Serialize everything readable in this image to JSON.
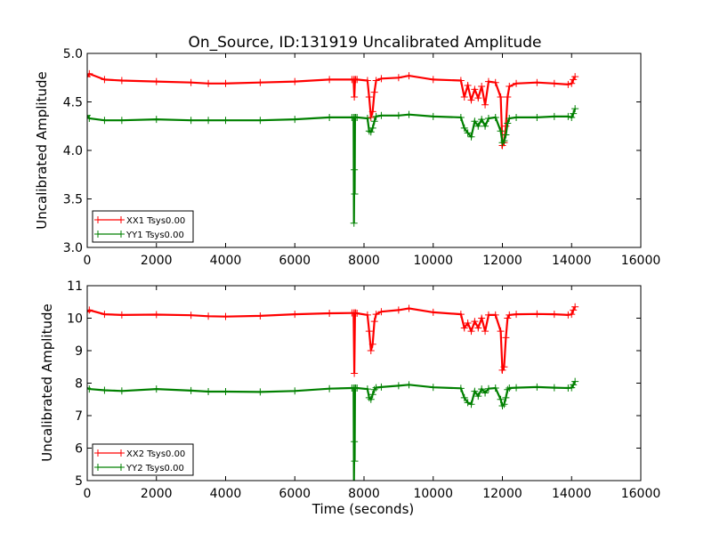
{
  "figure": {
    "title": "On_Source, ID:131919 Uncalibrated Amplitude"
  },
  "chart_data": [
    {
      "type": "line",
      "title": "On_Source, ID:131919 Uncalibrated Amplitude",
      "xlabel": "",
      "ylabel": "Uncalibrated Amplitude",
      "xlim": [
        0,
        16000
      ],
      "ylim": [
        3.0,
        5.0
      ],
      "x_ticks": [
        0,
        2000,
        4000,
        6000,
        8000,
        10000,
        12000,
        14000,
        16000
      ],
      "x_tick_labels": [
        "0",
        "2000",
        "4000",
        "6000",
        "8000",
        "10000",
        "12000",
        "14000",
        "16000"
      ],
      "y_ticks": [
        3.0,
        3.5,
        4.0,
        4.5,
        5.0
      ],
      "y_tick_labels": [
        "3.0",
        "3.5",
        "4.0",
        "4.5",
        "5.0"
      ],
      "grid": false,
      "legend_position": "lower-left",
      "marker": "+",
      "series": [
        {
          "name": "XX1 Tsys0.00",
          "color": "#ff0000",
          "x": [
            0,
            60,
            500,
            1000,
            2000,
            3000,
            3500,
            4000,
            5000,
            6000,
            7000,
            7650,
            7700,
            7720,
            7740,
            7760,
            7800,
            8100,
            8150,
            8200,
            8250,
            8300,
            8350,
            8500,
            9000,
            9300,
            10000,
            10800,
            10900,
            11000,
            11100,
            11200,
            11300,
            11400,
            11500,
            11600,
            11800,
            11950,
            12000,
            12050,
            12100,
            12150,
            12200,
            12400,
            13000,
            13500,
            13900,
            14000,
            14050,
            14100
          ],
          "y": [
            4.76,
            4.79,
            4.73,
            4.72,
            4.71,
            4.7,
            4.69,
            4.69,
            4.7,
            4.71,
            4.73,
            4.73,
            4.73,
            4.55,
            4.73,
            4.73,
            4.73,
            4.72,
            4.55,
            4.34,
            4.4,
            4.6,
            4.72,
            4.74,
            4.75,
            4.77,
            4.73,
            4.72,
            4.55,
            4.67,
            4.52,
            4.63,
            4.54,
            4.66,
            4.47,
            4.71,
            4.7,
            4.55,
            4.05,
            4.08,
            4.25,
            4.55,
            4.66,
            4.69,
            4.7,
            4.69,
            4.68,
            4.69,
            4.73,
            4.76
          ]
        },
        {
          "name": "YY1 Tsys0.00",
          "color": "#008000",
          "x": [
            0,
            60,
            500,
            1000,
            2000,
            3000,
            3500,
            4000,
            5000,
            6000,
            7000,
            7650,
            7700,
            7710,
            7720,
            7730,
            7740,
            7760,
            7800,
            8100,
            8150,
            8200,
            8250,
            8300,
            8350,
            8500,
            9000,
            9300,
            10000,
            10800,
            10900,
            11000,
            11100,
            11200,
            11300,
            11400,
            11500,
            11600,
            11800,
            11950,
            12000,
            12050,
            12100,
            12150,
            12200,
            12400,
            13000,
            13500,
            13900,
            14000,
            14050,
            14100
          ],
          "y": [
            4.36,
            4.33,
            4.31,
            4.31,
            4.32,
            4.31,
            4.31,
            4.31,
            4.31,
            4.32,
            4.34,
            4.34,
            4.34,
            3.25,
            3.8,
            3.55,
            4.34,
            4.34,
            4.34,
            4.33,
            4.2,
            4.19,
            4.23,
            4.3,
            4.35,
            4.36,
            4.36,
            4.37,
            4.35,
            4.34,
            4.23,
            4.18,
            4.14,
            4.3,
            4.25,
            4.32,
            4.25,
            4.33,
            4.34,
            4.2,
            4.08,
            4.1,
            4.16,
            4.28,
            4.33,
            4.34,
            4.34,
            4.35,
            4.35,
            4.34,
            4.38,
            4.43
          ]
        }
      ]
    },
    {
      "type": "line",
      "title": "",
      "xlabel": "Time (seconds)",
      "ylabel": "Uncalibrated Amplitude",
      "xlim": [
        0,
        16000
      ],
      "ylim": [
        5,
        11
      ],
      "x_ticks": [
        0,
        2000,
        4000,
        6000,
        8000,
        10000,
        12000,
        14000,
        16000
      ],
      "x_tick_labels": [
        "0",
        "2000",
        "4000",
        "6000",
        "8000",
        "10000",
        "12000",
        "14000",
        "16000"
      ],
      "y_ticks": [
        5,
        6,
        7,
        8,
        9,
        10,
        11
      ],
      "y_tick_labels": [
        "5",
        "6",
        "7",
        "8",
        "9",
        "10",
        "11"
      ],
      "grid": false,
      "legend_position": "lower-left",
      "marker": "+",
      "series": [
        {
          "name": "XX2 Tsys0.00",
          "color": "#ff0000",
          "x": [
            0,
            60,
            500,
            1000,
            2000,
            3000,
            3500,
            4000,
            5000,
            6000,
            7000,
            7650,
            7700,
            7720,
            7740,
            7760,
            7800,
            8100,
            8150,
            8200,
            8250,
            8300,
            8350,
            8500,
            9000,
            9300,
            10000,
            10800,
            10900,
            11000,
            11100,
            11200,
            11300,
            11400,
            11500,
            11600,
            11800,
            11950,
            12000,
            12050,
            12100,
            12150,
            12200,
            12400,
            13000,
            13500,
            13900,
            14000,
            14050,
            14100
          ],
          "y": [
            10.2,
            10.25,
            10.12,
            10.1,
            10.11,
            10.09,
            10.06,
            10.05,
            10.07,
            10.12,
            10.15,
            10.16,
            10.16,
            8.3,
            10.16,
            10.16,
            10.15,
            10.1,
            9.6,
            9.0,
            9.2,
            9.9,
            10.12,
            10.2,
            10.25,
            10.3,
            10.18,
            10.12,
            9.7,
            9.85,
            9.6,
            9.9,
            9.7,
            10.0,
            9.6,
            10.1,
            10.1,
            9.6,
            8.4,
            8.5,
            9.4,
            10.0,
            10.1,
            10.12,
            10.13,
            10.12,
            10.1,
            10.12,
            10.25,
            10.35
          ]
        },
        {
          "name": "YY2 Tsys0.00",
          "color": "#008000",
          "x": [
            0,
            60,
            500,
            1000,
            2000,
            3000,
            3500,
            4000,
            5000,
            6000,
            7000,
            7650,
            7700,
            7710,
            7720,
            7730,
            7740,
            7760,
            7800,
            8100,
            8150,
            8200,
            8250,
            8300,
            8350,
            8500,
            9000,
            9300,
            10000,
            10800,
            10900,
            11000,
            11100,
            11200,
            11300,
            11400,
            11500,
            11600,
            11800,
            11950,
            12000,
            12050,
            12100,
            12150,
            12200,
            12400,
            13000,
            13500,
            13900,
            14000,
            14050,
            14100
          ],
          "y": [
            7.85,
            7.82,
            7.78,
            7.76,
            7.82,
            7.77,
            7.74,
            7.74,
            7.73,
            7.76,
            7.83,
            7.85,
            7.85,
            5.0,
            6.2,
            5.6,
            7.85,
            7.85,
            7.85,
            7.82,
            7.55,
            7.5,
            7.65,
            7.8,
            7.86,
            7.88,
            7.92,
            7.95,
            7.87,
            7.84,
            7.55,
            7.4,
            7.35,
            7.75,
            7.6,
            7.82,
            7.7,
            7.83,
            7.85,
            7.5,
            7.3,
            7.35,
            7.55,
            7.8,
            7.85,
            7.86,
            7.88,
            7.86,
            7.85,
            7.86,
            7.95,
            8.05
          ]
        }
      ]
    }
  ]
}
